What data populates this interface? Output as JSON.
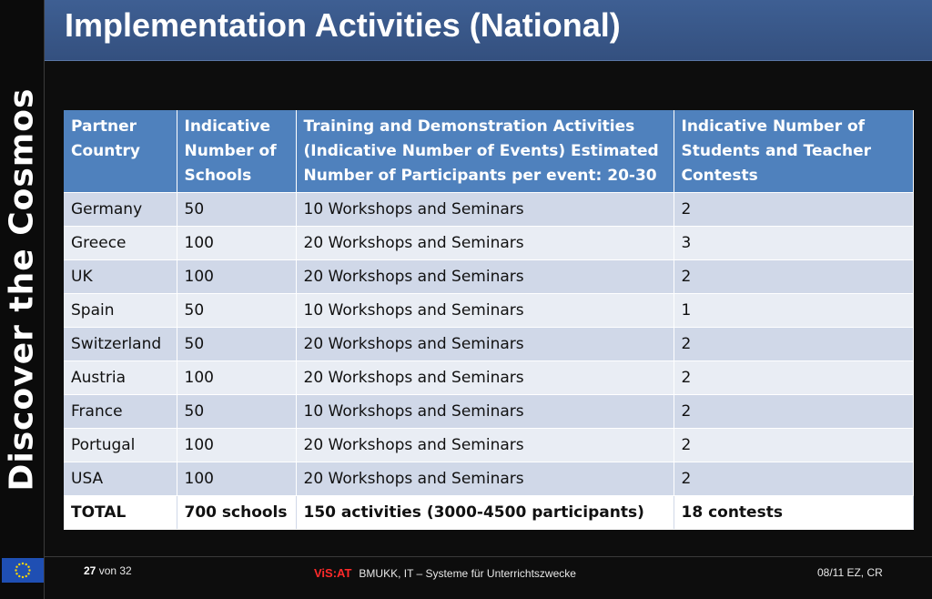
{
  "sidebar": {
    "vertical_title": "Discover the Cosmos"
  },
  "header": {
    "title": "Implementation Activities (National)"
  },
  "table": {
    "columns": [
      "Partner Country",
      "Indicative Number of Schools",
      "Training and Demonstration Activities (Indicative Number of Events) Estimated Number of Participants per event: 20-30",
      "Indicative Number of Students and Teacher Contests"
    ],
    "rows": [
      [
        "Germany",
        "50",
        "10 Workshops and Seminars",
        "2"
      ],
      [
        "Greece",
        "100",
        "20 Workshops and Seminars",
        "3"
      ],
      [
        "UK",
        "100",
        "20 Workshops and Seminars",
        "2"
      ],
      [
        "Spain",
        "50",
        "10 Workshops and Seminars",
        "1"
      ],
      [
        "Switzerland",
        "50",
        "20 Workshops and Seminars",
        "2"
      ],
      [
        "Austria",
        "100",
        "20 Workshops and Seminars",
        "2"
      ],
      [
        "France",
        "50",
        "10 Workshops and Seminars",
        "2"
      ],
      [
        "Portugal",
        "100",
        "20 Workshops and Seminars",
        "2"
      ],
      [
        "USA",
        "100",
        "20 Workshops and Seminars",
        "2"
      ]
    ],
    "total": [
      "TOTAL",
      "700 schools",
      "150 activities (3000-4500 participants)",
      "18 contests"
    ]
  },
  "footer": {
    "page_current": "27",
    "page_of": "von 32",
    "brand_logo": "ViS:AT",
    "brand_text": "BMUKK, IT – Systeme für Unterrichtszwecke",
    "date_info": "08/11 EZ, CR"
  },
  "colors": {
    "header_bg": "#3e5f93",
    "table_header": "#4f81bd",
    "row_odd": "#d0d8e8",
    "row_even": "#e9edf4",
    "brand_red": "#ff2a2a",
    "eu_blue": "#1f4fb3",
    "eu_star": "#ffd700"
  },
  "icons": {
    "footer_logo": "eu-flag-icon"
  }
}
